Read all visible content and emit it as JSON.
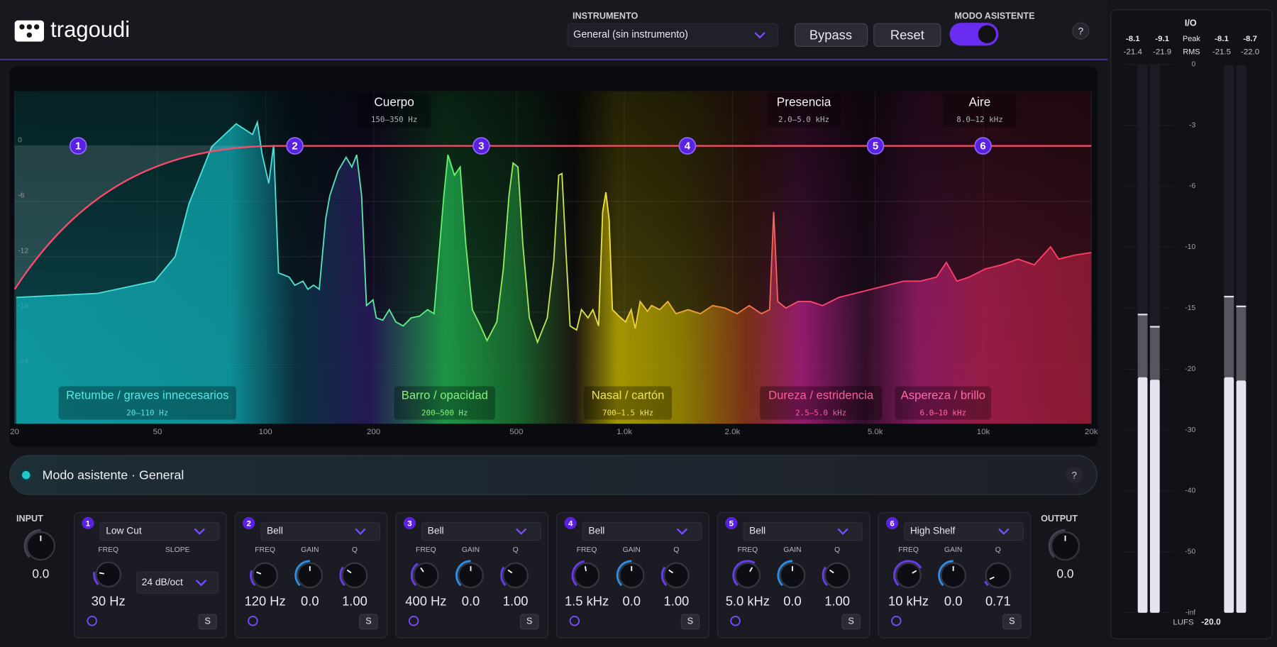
{
  "header": {
    "logo": "tragoudi",
    "instrument_label": "INSTRUMENTO",
    "instrument": "General (sin instrumento)",
    "bypass": "Bypass",
    "reset": "Reset",
    "assistant_label": "MODO ASISTENTE",
    "help": "?"
  },
  "graph": {
    "freq_ticks": [
      20,
      50,
      100,
      200,
      500,
      {
        "value": 1000,
        "label": "1.0k"
      },
      {
        "value": 2000,
        "label": "2.0k"
      },
      {
        "value": 5000,
        "label": "5.0k"
      },
      {
        "value": 10000,
        "label": "10k"
      },
      {
        "value": 20000,
        "label": "20k"
      }
    ],
    "db_ticks": [
      0,
      -6,
      -12,
      -18,
      -24
    ],
    "nodes": [
      1,
      2,
      3,
      4,
      5,
      6
    ],
    "top_regions": [
      {
        "name": "Cuerpo",
        "range": "150–350 Hz"
      },
      {
        "name": "Presencia",
        "range": "2.0–5.0 kHz"
      },
      {
        "name": "Aire",
        "range": "8.0–12 kHz"
      }
    ],
    "problem_regions": [
      {
        "name": "Retumbe / graves innecesarios",
        "range": "20–110 Hz"
      },
      {
        "name": "Barro / opacidad",
        "range": "200–500 Hz"
      },
      {
        "name": "Nasal / cartón",
        "range": "700–1.5 kHz"
      },
      {
        "name": "Dureza / estridencia",
        "range": "2.5–5.0 kHz"
      },
      {
        "name": "Aspereza / brillo",
        "range": "6.0–10 kHz"
      }
    ]
  },
  "assistant_bar": {
    "text": "Modo asistente · General",
    "help": "?"
  },
  "input": {
    "label": "INPUT",
    "value": "0.0"
  },
  "output": {
    "label": "OUTPUT",
    "value": "0.0"
  },
  "bands": [
    {
      "number": 1,
      "type": "Low Cut",
      "params": [
        {
          "label": "FREQ",
          "value": "30 Hz"
        },
        {
          "label": "SLOPE",
          "value": "24 dB/oct"
        }
      ],
      "solo": "S"
    },
    {
      "number": 2,
      "type": "Bell",
      "params": [
        {
          "label": "FREQ",
          "value": "120 Hz"
        },
        {
          "label": "GAIN",
          "value": "0.0"
        },
        {
          "label": "Q",
          "value": "1.00"
        }
      ],
      "solo": "S"
    },
    {
      "number": 3,
      "type": "Bell",
      "params": [
        {
          "label": "FREQ",
          "value": "400 Hz"
        },
        {
          "label": "GAIN",
          "value": "0.0"
        },
        {
          "label": "Q",
          "value": "1.00"
        }
      ],
      "solo": "S"
    },
    {
      "number": 4,
      "type": "Bell",
      "params": [
        {
          "label": "FREQ",
          "value": "1.5 kHz"
        },
        {
          "label": "GAIN",
          "value": "0.0"
        },
        {
          "label": "Q",
          "value": "1.00"
        }
      ],
      "solo": "S"
    },
    {
      "number": 5,
      "type": "Bell",
      "params": [
        {
          "label": "FREQ",
          "value": "5.0 kHz"
        },
        {
          "label": "GAIN",
          "value": "0.0"
        },
        {
          "label": "Q",
          "value": "1.00"
        }
      ],
      "solo": "S"
    },
    {
      "number": 6,
      "type": "High Shelf",
      "params": [
        {
          "label": "FREQ",
          "value": "10 kHz"
        },
        {
          "label": "GAIN",
          "value": "0.0"
        },
        {
          "label": "Q",
          "value": "0.71"
        }
      ],
      "solo": "S"
    }
  ],
  "meter": {
    "title": "I/O",
    "peak_label": "Peak",
    "rms_label": "RMS",
    "peak": [
      "-8.1",
      "-9.1",
      "-8.1",
      "-8.7"
    ],
    "rms": [
      "-21.4",
      "-21.9",
      "-21.5",
      "-22.0"
    ],
    "scale": [
      "0",
      "-3",
      "-6",
      "-10",
      "-15",
      "-20",
      "-30",
      "-40",
      "-50",
      "-inf"
    ],
    "lufs_label": "LUFS",
    "lufs": "-20.0"
  }
}
